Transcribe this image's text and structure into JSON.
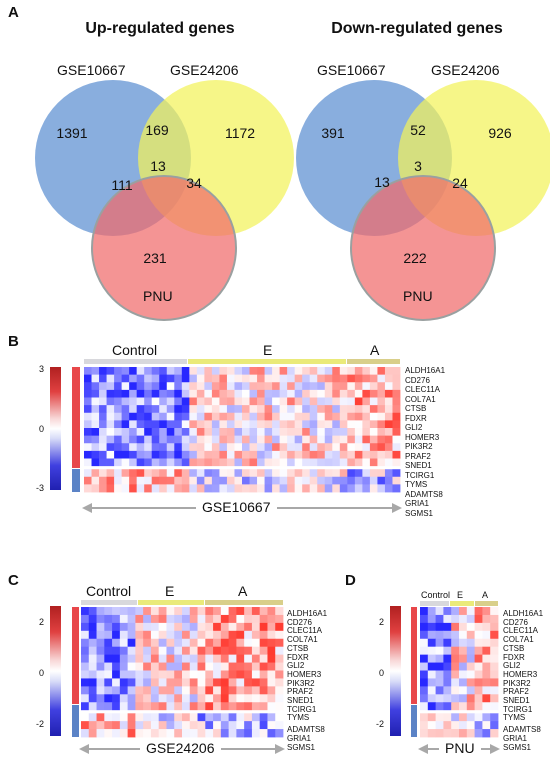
{
  "panels": {
    "A": "A",
    "B": "B",
    "C": "C",
    "D": "D"
  },
  "venn_up": {
    "title": "Up-regulated genes",
    "set1": "GSE10667",
    "set2": "GSE24206",
    "set3": "PNU",
    "only1": "1391",
    "only2": "1172",
    "only3": "231",
    "s12": "169",
    "s13": "111",
    "s23": "34",
    "s123": "13"
  },
  "venn_down": {
    "title": "Down-regulated genes",
    "set1": "GSE10667",
    "set2": "GSE24206",
    "set3": "PNU",
    "only1": "391",
    "only2": "926",
    "only3": "222",
    "s12": "52",
    "s13": "13",
    "s23": "24",
    "s123": "3"
  },
  "colors": {
    "set1": "#5b8fd1",
    "set2": "#f2f25a",
    "set3": "#f06b6b",
    "control_bar": "#d8d8dc",
    "e_bar": "#eaea7a",
    "a_bar": "#d9cf8a",
    "up_side": "#e8474a",
    "down_side": "#5b83c6"
  },
  "heatmap_B": {
    "groups": [
      "Control",
      "E",
      "A"
    ],
    "ticks": [
      "3",
      "0",
      "-3"
    ],
    "genes_up": [
      "ALDH16A1",
      "CD276",
      "CLEC11A",
      "COL7A1",
      "CTSB",
      "FDXR",
      "GLI2",
      "HOMER3",
      "PIK3R2",
      "PRAF2",
      "SNED1",
      "TCIRG1",
      "TYMS"
    ],
    "genes_down": [
      "ADAMTS8",
      "GRIA1",
      "SGMS1"
    ],
    "dataset": "GSE10667"
  },
  "heatmap_C": {
    "groups": [
      "Control",
      "E",
      "A"
    ],
    "ticks": [
      "2",
      "0",
      "-2"
    ],
    "genes_up": [
      "ALDH16A1",
      "CD276",
      "CLEC11A",
      "COL7A1",
      "CTSB",
      "FDXR",
      "GLI2",
      "HOMER3",
      "PIK3R2",
      "PRAF2",
      "SNED1",
      "TCIRG1",
      "TYMS"
    ],
    "genes_down": [
      "ADAMTS8",
      "GRIA1",
      "SGMS1"
    ],
    "dataset": "GSE24206"
  },
  "heatmap_D": {
    "groups": [
      "Control",
      "E",
      "A"
    ],
    "ticks": [
      "2",
      "0",
      "-2"
    ],
    "genes_up": [
      "ALDH16A1",
      "CD276",
      "CLEC11A",
      "COL7A1",
      "CTSB",
      "FDXR",
      "GLI2",
      "HOMER3",
      "PIK3R2",
      "PRAF2",
      "SNED1",
      "TCIRG1",
      "TYMS"
    ],
    "genes_down": [
      "ADAMTS8",
      "GRIA1",
      "SGMS1"
    ],
    "dataset": "PNU"
  }
}
